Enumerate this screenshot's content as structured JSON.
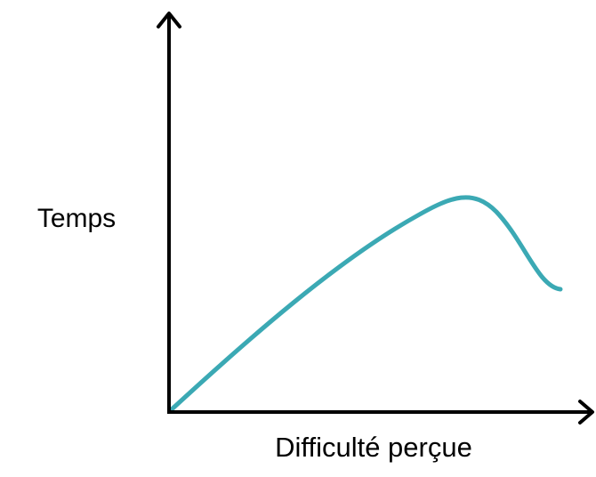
{
  "y_axis": {
    "label": "Temps"
  },
  "x_axis": {
    "label": "Difficulté perçue"
  }
}
